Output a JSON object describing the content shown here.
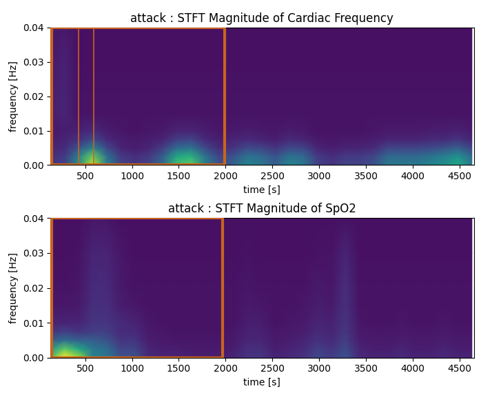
{
  "chart_data": [
    {
      "type": "heatmap",
      "title": "attack : STFT Magnitude of Cardiac Frequency",
      "x_label": "time [s]",
      "y_label": "frequency [Hz]",
      "xlim": [
        130,
        4650
      ],
      "xticks": [
        500,
        1000,
        1500,
        2000,
        2500,
        3000,
        3500,
        4000,
        4500
      ],
      "ylim": [
        0,
        0.04
      ],
      "yticks": [
        {
          "value": 0,
          "label": "0.00"
        },
        {
          "value": 0.01,
          "label": "0.01"
        },
        {
          "value": 0.02,
          "label": "0.02"
        },
        {
          "value": 0.03,
          "label": "0.03"
        },
        {
          "value": 0.04,
          "label": "0.04"
        }
      ],
      "x": [
        130,
        280,
        430,
        580,
        730,
        880,
        1030,
        1180,
        1330,
        1480,
        1630,
        1780,
        1930,
        2080,
        2230,
        2380,
        2530,
        2680,
        2830,
        2980,
        3130,
        3280,
        3430,
        3580,
        3730,
        3880,
        4030,
        4180,
        4330,
        4480,
        4630
      ],
      "y": [
        0,
        0.0025,
        0.005,
        0.0075,
        0.01,
        0.015,
        0.02,
        0.03,
        0.04
      ],
      "color_range": [
        0,
        1
      ],
      "highlight_x": [
        140,
        1990
      ],
      "lines_x": [
        430,
        590
      ],
      "cells": [
        [
          0.15,
          0.2,
          0.5,
          0.9,
          0.45,
          0.2,
          0.15,
          0.2,
          0.35,
          0.7,
          0.75,
          0.45,
          0.25,
          0.3,
          0.45,
          0.4,
          0.3,
          0.45,
          0.4,
          0.2,
          0.15,
          0.2,
          0.2,
          0.25,
          0.4,
          0.4,
          0.4,
          0.45,
          0.5,
          0.6,
          0.4
        ],
        [
          0.13,
          0.17,
          0.43,
          0.77,
          0.38,
          0.17,
          0.13,
          0.17,
          0.3,
          0.6,
          0.64,
          0.38,
          0.21,
          0.26,
          0.38,
          0.34,
          0.26,
          0.38,
          0.34,
          0.17,
          0.13,
          0.17,
          0.17,
          0.21,
          0.34,
          0.34,
          0.34,
          0.38,
          0.43,
          0.51,
          0.34
        ],
        [
          0.1,
          0.12,
          0.25,
          0.45,
          0.22,
          0.1,
          0.08,
          0.1,
          0.18,
          0.35,
          0.38,
          0.22,
          0.12,
          0.15,
          0.22,
          0.2,
          0.15,
          0.22,
          0.2,
          0.1,
          0.08,
          0.1,
          0.1,
          0.12,
          0.2,
          0.2,
          0.2,
          0.22,
          0.25,
          0.3,
          0.2
        ],
        [
          0.08,
          0.1,
          0.14,
          0.22,
          0.12,
          0.08,
          0.07,
          0.08,
          0.1,
          0.18,
          0.2,
          0.12,
          0.08,
          0.1,
          0.12,
          0.1,
          0.08,
          0.12,
          0.1,
          0.07,
          0.06,
          0.07,
          0.07,
          0.08,
          0.1,
          0.1,
          0.1,
          0.12,
          0.12,
          0.15,
          0.1
        ],
        [
          0.07,
          0.08,
          0.09,
          0.12,
          0.08,
          0.06,
          0.05,
          0.06,
          0.07,
          0.1,
          0.1,
          0.08,
          0.06,
          0.07,
          0.08,
          0.07,
          0.06,
          0.08,
          0.07,
          0.05,
          0.05,
          0.05,
          0.05,
          0.06,
          0.07,
          0.07,
          0.07,
          0.08,
          0.08,
          0.09,
          0.07
        ],
        [
          0.08,
          0.1,
          0.05,
          0.05,
          0.05,
          0.05,
          0.05,
          0.05,
          0.05,
          0.05,
          0.05,
          0.05,
          0.05,
          0.05,
          0.05,
          0.05,
          0.05,
          0.05,
          0.05,
          0.05,
          0.05,
          0.05,
          0.05,
          0.05,
          0.05,
          0.05,
          0.05,
          0.05,
          0.05,
          0.05,
          0.05
        ],
        [
          0.08,
          0.1,
          0.05,
          0.05,
          0.05,
          0.05,
          0.05,
          0.05,
          0.05,
          0.05,
          0.05,
          0.05,
          0.05,
          0.05,
          0.05,
          0.05,
          0.05,
          0.05,
          0.05,
          0.05,
          0.05,
          0.05,
          0.05,
          0.05,
          0.05,
          0.05,
          0.05,
          0.05,
          0.05,
          0.05,
          0.05
        ],
        [
          0.07,
          0.09,
          0.04,
          0.04,
          0.04,
          0.04,
          0.04,
          0.04,
          0.04,
          0.04,
          0.04,
          0.04,
          0.04,
          0.04,
          0.04,
          0.04,
          0.04,
          0.04,
          0.04,
          0.04,
          0.04,
          0.04,
          0.04,
          0.04,
          0.04,
          0.04,
          0.04,
          0.04,
          0.04,
          0.04,
          0.04
        ],
        [
          0.06,
          0.07,
          0.04,
          0.04,
          0.04,
          0.04,
          0.04,
          0.04,
          0.04,
          0.04,
          0.04,
          0.04,
          0.04,
          0.04,
          0.04,
          0.04,
          0.04,
          0.04,
          0.04,
          0.04,
          0.04,
          0.04,
          0.04,
          0.04,
          0.04,
          0.04,
          0.04,
          0.04,
          0.04,
          0.04,
          0.04
        ]
      ]
    },
    {
      "type": "heatmap",
      "title": "attack : STFT Magnitude of SpO2",
      "x_label": "time [s]",
      "y_label": "frequency [Hz]",
      "xlim": [
        130,
        4650
      ],
      "xticks": [
        500,
        1000,
        1500,
        2000,
        2500,
        3000,
        3500,
        4000,
        4500
      ],
      "ylim": [
        0,
        0.04
      ],
      "yticks": [
        {
          "value": 0,
          "label": "0.00"
        },
        {
          "value": 0.01,
          "label": "0.01"
        },
        {
          "value": 0.02,
          "label": "0.02"
        },
        {
          "value": 0.03,
          "label": "0.03"
        },
        {
          "value": 0.04,
          "label": "0.04"
        }
      ],
      "x": [
        130,
        280,
        430,
        580,
        730,
        880,
        1030,
        1180,
        1330,
        1480,
        1630,
        1780,
        1930,
        2080,
        2230,
        2380,
        2530,
        2680,
        2830,
        2980,
        3130,
        3280,
        3430,
        3580,
        3730,
        3880,
        4030,
        4180,
        4330,
        4480,
        4630
      ],
      "y": [
        0,
        0.0025,
        0.005,
        0.0075,
        0.01,
        0.015,
        0.02,
        0.03,
        0.04
      ],
      "color_range": [
        0,
        1
      ],
      "highlight_x": [
        140,
        1970
      ],
      "cells": [
        [
          0.7,
          1.0,
          0.85,
          0.45,
          0.4,
          0.25,
          0.25,
          0.12,
          0.1,
          0.1,
          0.08,
          0.08,
          0.08,
          0.1,
          0.15,
          0.15,
          0.1,
          0.12,
          0.15,
          0.22,
          0.18,
          0.25,
          0.12,
          0.1,
          0.1,
          0.12,
          0.1,
          0.1,
          0.12,
          0.1,
          0.1
        ],
        [
          0.5,
          0.75,
          0.6,
          0.4,
          0.35,
          0.2,
          0.2,
          0.1,
          0.08,
          0.08,
          0.07,
          0.07,
          0.07,
          0.08,
          0.13,
          0.13,
          0.08,
          0.1,
          0.12,
          0.18,
          0.15,
          0.22,
          0.1,
          0.08,
          0.08,
          0.1,
          0.08,
          0.08,
          0.1,
          0.08,
          0.08
        ],
        [
          0.3,
          0.35,
          0.3,
          0.3,
          0.25,
          0.15,
          0.15,
          0.08,
          0.07,
          0.06,
          0.06,
          0.06,
          0.06,
          0.07,
          0.1,
          0.1,
          0.07,
          0.08,
          0.1,
          0.14,
          0.12,
          0.18,
          0.08,
          0.07,
          0.07,
          0.08,
          0.07,
          0.07,
          0.08,
          0.07,
          0.07
        ],
        [
          0.15,
          0.18,
          0.15,
          0.18,
          0.18,
          0.12,
          0.12,
          0.07,
          0.06,
          0.05,
          0.05,
          0.05,
          0.05,
          0.06,
          0.09,
          0.09,
          0.06,
          0.07,
          0.08,
          0.12,
          0.1,
          0.16,
          0.07,
          0.06,
          0.06,
          0.07,
          0.06,
          0.06,
          0.07,
          0.06,
          0.06
        ],
        [
          0.1,
          0.1,
          0.1,
          0.15,
          0.15,
          0.12,
          0.1,
          0.06,
          0.05,
          0.05,
          0.05,
          0.05,
          0.05,
          0.05,
          0.08,
          0.08,
          0.05,
          0.06,
          0.07,
          0.1,
          0.09,
          0.15,
          0.06,
          0.05,
          0.05,
          0.06,
          0.05,
          0.05,
          0.06,
          0.05,
          0.05
        ],
        [
          0.06,
          0.06,
          0.07,
          0.13,
          0.13,
          0.08,
          0.06,
          0.05,
          0.05,
          0.05,
          0.05,
          0.05,
          0.05,
          0.05,
          0.07,
          0.06,
          0.05,
          0.05,
          0.06,
          0.08,
          0.07,
          0.14,
          0.05,
          0.05,
          0.05,
          0.05,
          0.05,
          0.05,
          0.05,
          0.05,
          0.05
        ],
        [
          0.05,
          0.05,
          0.06,
          0.12,
          0.12,
          0.07,
          0.05,
          0.05,
          0.05,
          0.05,
          0.05,
          0.05,
          0.05,
          0.05,
          0.06,
          0.05,
          0.05,
          0.05,
          0.05,
          0.07,
          0.06,
          0.13,
          0.05,
          0.05,
          0.05,
          0.05,
          0.05,
          0.05,
          0.05,
          0.05,
          0.05
        ],
        [
          0.04,
          0.04,
          0.05,
          0.1,
          0.1,
          0.06,
          0.04,
          0.04,
          0.04,
          0.04,
          0.04,
          0.04,
          0.04,
          0.04,
          0.05,
          0.04,
          0.04,
          0.04,
          0.04,
          0.05,
          0.05,
          0.1,
          0.04,
          0.04,
          0.04,
          0.04,
          0.04,
          0.04,
          0.04,
          0.04,
          0.04
        ],
        [
          0.04,
          0.04,
          0.04,
          0.06,
          0.06,
          0.04,
          0.04,
          0.04,
          0.04,
          0.04,
          0.04,
          0.04,
          0.04,
          0.04,
          0.04,
          0.04,
          0.04,
          0.04,
          0.04,
          0.04,
          0.04,
          0.05,
          0.04,
          0.04,
          0.04,
          0.04,
          0.04,
          0.04,
          0.04,
          0.04,
          0.04
        ]
      ]
    }
  ]
}
